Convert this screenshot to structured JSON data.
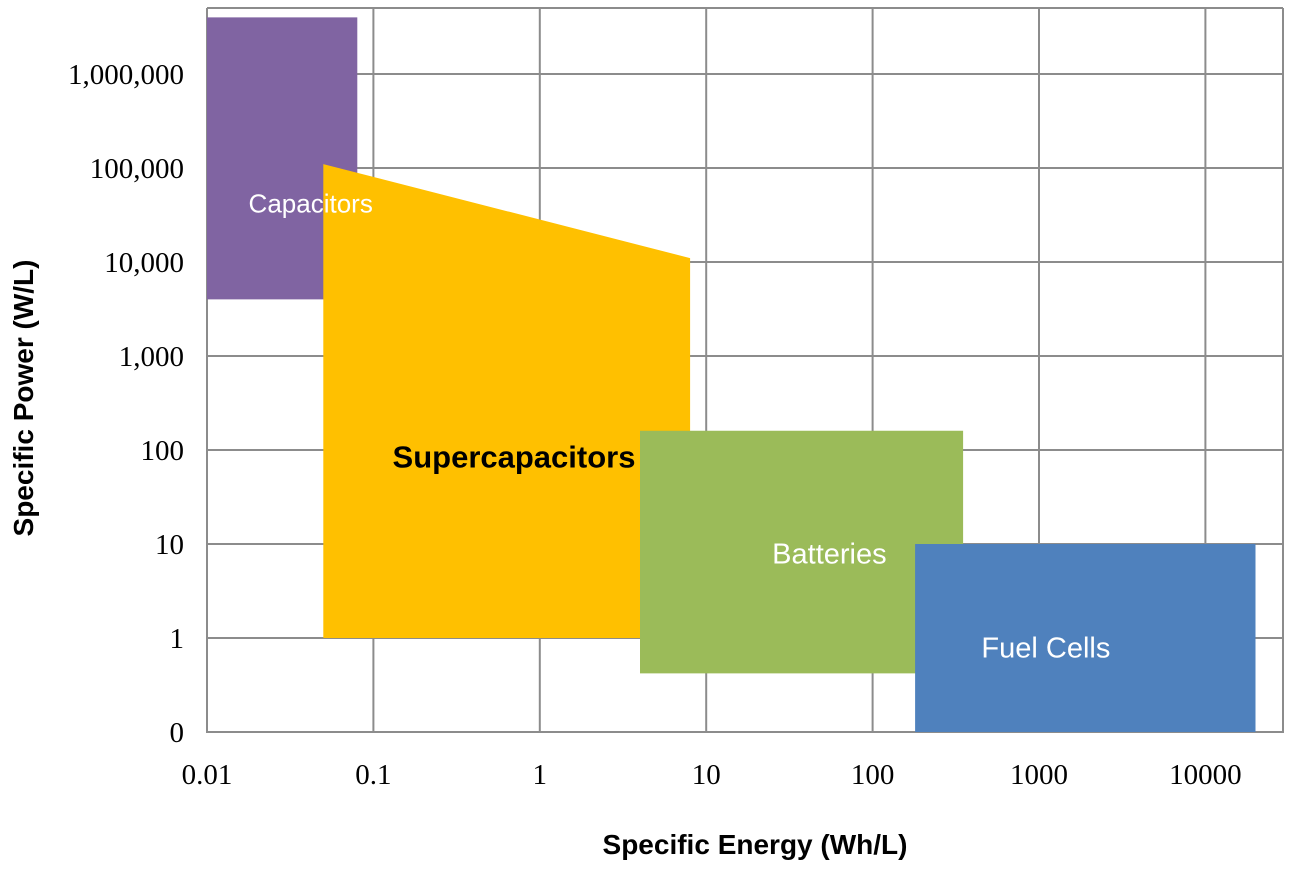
{
  "chart_data": {
    "type": "area",
    "title": "",
    "xlabel": "Specific Energy (Wh/L)",
    "ylabel": "Specific Power (W/L)",
    "x_scale": "log",
    "y_scale": "log",
    "xlim": [
      0.01,
      20000
    ],
    "ylim": [
      0.1,
      4000000
    ],
    "grid": true,
    "x_ticks": [
      {
        "value": 0.01,
        "label": "0.01"
      },
      {
        "value": 0.1,
        "label": "0.1"
      },
      {
        "value": 1,
        "label": "1"
      },
      {
        "value": 10,
        "label": "10"
      },
      {
        "value": 100,
        "label": "100"
      },
      {
        "value": 1000,
        "label": "1000"
      },
      {
        "value": 10000,
        "label": "10000"
      }
    ],
    "y_ticks": [
      {
        "value": 0.1,
        "label": "0"
      },
      {
        "value": 1,
        "label": "1"
      },
      {
        "value": 10,
        "label": "10"
      },
      {
        "value": 100,
        "label": "100"
      },
      {
        "value": 1000,
        "label": "1,000"
      },
      {
        "value": 10000,
        "label": "10,000"
      },
      {
        "value": 100000,
        "label": "100,000"
      },
      {
        "value": 1000000,
        "label": "1,000,000"
      }
    ],
    "regions": [
      {
        "name": "Capacitors",
        "color": "#8064a2",
        "label_color": "#ffffff",
        "label_weight": "normal",
        "label_size": 26,
        "label_at": [
          0.042,
          40000
        ],
        "polygon": [
          [
            0.01,
            4000
          ],
          [
            0.08,
            4000
          ],
          [
            0.08,
            4000000
          ],
          [
            0.01,
            4000000
          ]
        ]
      },
      {
        "name": "Supercapacitors",
        "color": "#ffc000",
        "label_color": "#000000",
        "label_weight": "bold",
        "label_size": 31,
        "label_at": [
          0.7,
          80
        ],
        "polygon": [
          [
            0.05,
            1
          ],
          [
            8,
            1
          ],
          [
            8,
            11000
          ],
          [
            0.05,
            110000
          ]
        ]
      },
      {
        "name": "Batteries",
        "color": "#9bbb59",
        "label_color": "#ffffff",
        "label_weight": "normal",
        "label_size": 29,
        "label_at": [
          55,
          7.5
        ],
        "polygon": [
          [
            4,
            0.42
          ],
          [
            350,
            0.42
          ],
          [
            350,
            160
          ],
          [
            4,
            160
          ]
        ]
      },
      {
        "name": "Fuel Cells",
        "color": "#4f81bd",
        "label_color": "#ffffff",
        "label_weight": "normal",
        "label_size": 29,
        "label_at": [
          1100,
          0.75
        ],
        "polygon": [
          [
            180,
            0.1
          ],
          [
            20000,
            0.1
          ],
          [
            20000,
            10
          ],
          [
            180,
            10
          ]
        ]
      }
    ]
  }
}
